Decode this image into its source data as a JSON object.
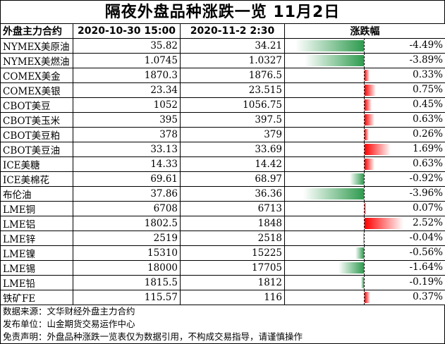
{
  "title": "隔夜外盘品种涨跌一览 11月2日",
  "headers": {
    "name": "外盘主力合约",
    "prev": "2020-10-30 15:00",
    "curr": "2020-11-2 2:30",
    "change": "涨跌幅"
  },
  "rows": [
    {
      "name": "NYMEX美原油",
      "prev": "35.82",
      "curr": "34.21",
      "pct": -4.49,
      "pct_label": "-4.49%"
    },
    {
      "name": "NYMEX美燃油",
      "prev": "1.0745",
      "curr": "1.0327",
      "pct": -3.89,
      "pct_label": "-3.89%"
    },
    {
      "name": "COMEX美金",
      "prev": "1870.3",
      "curr": "1876.5",
      "pct": 0.33,
      "pct_label": "0.33%"
    },
    {
      "name": "COMEX美银",
      "prev": "23.34",
      "curr": "23.515",
      "pct": 0.75,
      "pct_label": "0.75%"
    },
    {
      "name": "CBOT美豆",
      "prev": "1052",
      "curr": "1056.75",
      "pct": 0.45,
      "pct_label": "0.45%"
    },
    {
      "name": "CBOT美玉米",
      "prev": "395",
      "curr": "397.5",
      "pct": 0.63,
      "pct_label": "0.63%"
    },
    {
      "name": "CBOT美豆粕",
      "prev": "378",
      "curr": "379",
      "pct": 0.26,
      "pct_label": "0.26%"
    },
    {
      "name": "CBOT美豆油",
      "prev": "33.13",
      "curr": "33.69",
      "pct": 1.69,
      "pct_label": "1.69%"
    },
    {
      "name": "ICE美糖",
      "prev": "14.33",
      "curr": "14.42",
      "pct": 0.63,
      "pct_label": "0.63%"
    },
    {
      "name": "ICE美棉花",
      "prev": "69.61",
      "curr": "68.97",
      "pct": -0.92,
      "pct_label": "-0.92%"
    },
    {
      "name": "布伦油",
      "prev": "37.86",
      "curr": "36.36",
      "pct": -3.96,
      "pct_label": "-3.96%"
    },
    {
      "name": "LME铜",
      "prev": "6708",
      "curr": "6713",
      "pct": 0.07,
      "pct_label": "0.07%"
    },
    {
      "name": "LME铝",
      "prev": "1802.5",
      "curr": "1848",
      "pct": 2.52,
      "pct_label": "2.52%"
    },
    {
      "name": "LME锌",
      "prev": "2519",
      "curr": "2518",
      "pct": -0.04,
      "pct_label": "-0.04%"
    },
    {
      "name": "LME镍",
      "prev": "15310",
      "curr": "15225",
      "pct": -0.56,
      "pct_label": "-0.56%"
    },
    {
      "name": "LME锡",
      "prev": "18000",
      "curr": "17705",
      "pct": -1.64,
      "pct_label": "-1.64%"
    },
    {
      "name": "LME铅",
      "prev": "1815.5",
      "curr": "1812",
      "pct": -0.19,
      "pct_label": "-0.19%"
    },
    {
      "name": "铁矿FE",
      "prev": "115.57",
      "curr": "116",
      "pct": 0.37,
      "pct_label": "0.37%"
    }
  ],
  "footer": [
    "数据来源：文华财经外盘主力合约",
    "发布单位：山金期货交易运作中心",
    "免责声明：外盘品种涨跌一览表仅为数据引用，不构成交易指导，请谨慎操作"
  ],
  "colors": {
    "positive": "#ff0000",
    "negative": "#2e9b4e"
  }
}
